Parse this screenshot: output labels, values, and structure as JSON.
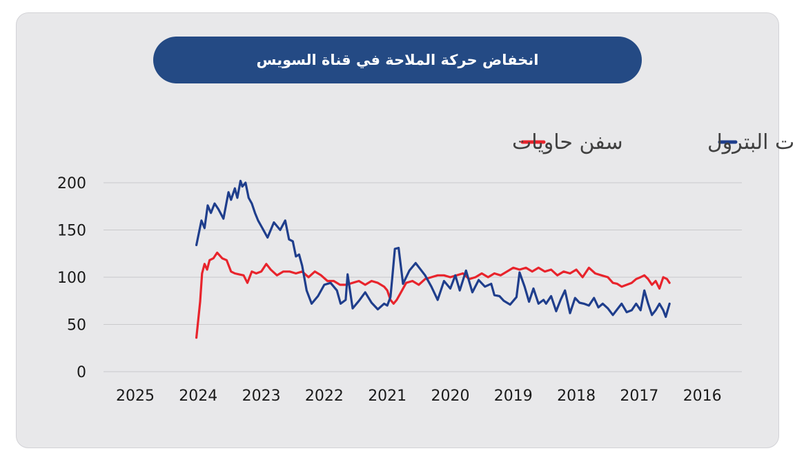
{
  "colors": {
    "background": "#e8e8ea",
    "title_bg": "#244a84",
    "title_text": "#ffffff",
    "series_oil": "#1f3e8c",
    "series_container": "#e8242c",
    "grid": "#c9c9cc"
  },
  "chart_data": {
    "type": "line",
    "title": "انخفاض حركة الملاحة في قناة السويس",
    "xlabel": "",
    "ylabel": "",
    "ylim": [
      0,
      200
    ],
    "yticks": [
      200,
      150,
      100,
      50,
      0
    ],
    "x_tick_labels": [
      "2025",
      "2024",
      "2023",
      "2022",
      "2021",
      "2020",
      "2019",
      "2018",
      "2017",
      "2016"
    ],
    "x_tick_years": [
      2025,
      2024,
      2023,
      2022,
      2021,
      2020,
      2019,
      2018,
      2017,
      2016
    ],
    "xlim": [
      2025,
      2015.75
    ],
    "grid": true,
    "legend_position": "top",
    "series": [
      {
        "name": "ناقلات البترول",
        "color": "#1f3e8c",
        "x": [
          2024.03,
          2023.95,
          2023.9,
          2023.85,
          2023.8,
          2023.74,
          2023.68,
          2023.6,
          2023.52,
          2023.48,
          2023.42,
          2023.38,
          2023.33,
          2023.3,
          2023.25,
          2023.2,
          2023.15,
          2023.1,
          2023.05,
          2023.0,
          2022.9,
          2022.8,
          2022.7,
          2022.62,
          2022.56,
          2022.5,
          2022.45,
          2022.4,
          2022.35,
          2022.28,
          2022.2,
          2022.1,
          2022.0,
          2021.9,
          2021.8,
          2021.74,
          2021.7,
          2021.66,
          2021.63,
          2021.55,
          2021.45,
          2021.35,
          2021.25,
          2021.15,
          2021.05,
          2021.0,
          2020.95,
          2020.92,
          2020.88,
          2020.82,
          2020.75,
          2020.65,
          2020.55,
          2020.4,
          2020.3,
          2020.2,
          2020.1,
          2020.0,
          2019.92,
          2019.85,
          2019.75,
          2019.65,
          2019.55,
          2019.45,
          2019.35,
          2019.3,
          2019.22,
          2019.15,
          2019.05,
          2018.95,
          2018.9,
          2018.82,
          2018.75,
          2018.68,
          2018.6,
          2018.52,
          2018.48,
          2018.4,
          2018.32,
          2018.25,
          2018.18,
          2018.1,
          2018.02,
          2017.95,
          2017.88,
          2017.8,
          2017.72,
          2017.65,
          2017.58,
          2017.5,
          2017.42,
          2017.35,
          2017.28,
          2017.2,
          2017.12,
          2017.05,
          2016.98,
          2016.92,
          2016.86,
          2016.8,
          2016.74,
          2016.68,
          2016.62,
          2016.58,
          2016.52
        ],
        "values": [
          134,
          160,
          152,
          176,
          168,
          178,
          172,
          162,
          190,
          182,
          194,
          184,
          202,
          196,
          200,
          184,
          178,
          168,
          160,
          154,
          142,
          158,
          150,
          160,
          140,
          138,
          122,
          124,
          112,
          86,
          72,
          80,
          92,
          94,
          86,
          72,
          74,
          76,
          103,
          67,
          75,
          84,
          73,
          66,
          72,
          70,
          79,
          100,
          130,
          131,
          93,
          107,
          115,
          102,
          90,
          76,
          96,
          88,
          102,
          86,
          107,
          84,
          97,
          90,
          93,
          81,
          80,
          75,
          71,
          79,
          105,
          90,
          74,
          88,
          72,
          76,
          72,
          80,
          64,
          76,
          86,
          62,
          78,
          73,
          72,
          70,
          78,
          68,
          72,
          67,
          60,
          66,
          72,
          63,
          65,
          72,
          65,
          86,
          72,
          60,
          65,
          72,
          65,
          58,
          72
        ]
      },
      {
        "name": "سفن حاويات",
        "color": "#e8242c",
        "x": [
          2024.03,
          2023.97,
          2023.94,
          2023.9,
          2023.86,
          2023.82,
          2023.76,
          2023.7,
          2023.62,
          2023.55,
          2023.48,
          2023.42,
          2023.35,
          2023.28,
          2023.22,
          2023.15,
          2023.08,
          2023.0,
          2022.92,
          2022.85,
          2022.75,
          2022.65,
          2022.55,
          2022.45,
          2022.35,
          2022.25,
          2022.15,
          2022.05,
          2021.95,
          2021.85,
          2021.75,
          2021.65,
          2021.55,
          2021.45,
          2021.35,
          2021.25,
          2021.15,
          2021.05,
          2021.0,
          2020.95,
          2020.9,
          2020.85,
          2020.8,
          2020.7,
          2020.6,
          2020.5,
          2020.4,
          2020.3,
          2020.2,
          2020.1,
          2020.0,
          2019.9,
          2019.8,
          2019.7,
          2019.6,
          2019.5,
          2019.4,
          2019.3,
          2019.2,
          2019.1,
          2019.0,
          2018.9,
          2018.8,
          2018.7,
          2018.6,
          2018.5,
          2018.4,
          2018.3,
          2018.2,
          2018.1,
          2018.0,
          2017.9,
          2017.8,
          2017.7,
          2017.6,
          2017.5,
          2017.42,
          2017.35,
          2017.28,
          2017.2,
          2017.12,
          2017.05,
          2016.98,
          2016.92,
          2016.86,
          2016.8,
          2016.74,
          2016.68,
          2016.62,
          2016.56,
          2016.52
        ],
        "values": [
          36,
          74,
          104,
          114,
          108,
          118,
          120,
          126,
          120,
          118,
          106,
          104,
          103,
          102,
          94,
          106,
          104,
          106,
          114,
          108,
          102,
          106,
          106,
          104,
          106,
          100,
          106,
          102,
          96,
          96,
          92,
          92,
          94,
          96,
          92,
          96,
          94,
          90,
          86,
          76,
          72,
          76,
          82,
          94,
          96,
          92,
          98,
          100,
          102,
          102,
          100,
          102,
          104,
          98,
          100,
          104,
          100,
          104,
          102,
          106,
          110,
          108,
          110,
          106,
          110,
          106,
          108,
          102,
          106,
          104,
          108,
          100,
          110,
          104,
          102,
          100,
          94,
          93,
          90,
          92,
          94,
          98,
          100,
          102,
          98,
          92,
          96,
          88,
          100,
          98,
          94
        ]
      }
    ]
  }
}
